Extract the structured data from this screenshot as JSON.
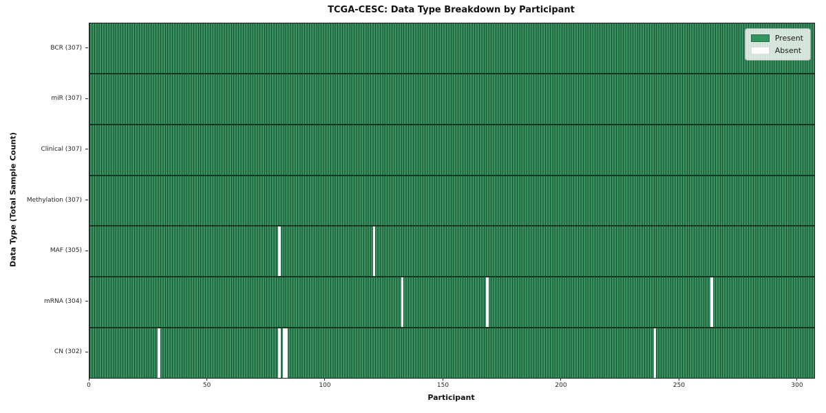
{
  "figure": {
    "title": "TCGA-CESC: Data Type Breakdown by Participant",
    "xlabel": "Participant",
    "ylabel": "Data Type (Total Sample Count)"
  },
  "legend": {
    "items": [
      {
        "label": "Present",
        "color": "#35935f"
      },
      {
        "label": "Absent",
        "color": "#ffffff"
      }
    ]
  },
  "chart_data": {
    "type": "heatmap",
    "title": "TCGA-CESC: Data Type Breakdown by Participant",
    "xlabel": "Participant",
    "ylabel": "Data Type (Total Sample Count)",
    "legend": [
      "Present",
      "Absent"
    ],
    "legend_position": "upper right",
    "n_participants": 307,
    "xlim": [
      0,
      307
    ],
    "x_ticks": [
      0,
      50,
      100,
      150,
      200,
      250,
      300
    ],
    "colors": {
      "present": "#35935f",
      "absent": "#ffffff",
      "bar_edge": "#20492f"
    },
    "rows": [
      {
        "data_type": "BCR",
        "label": "BCR (307)",
        "present_count": 307,
        "absent_participants": []
      },
      {
        "data_type": "miR",
        "label": "miR (307)",
        "present_count": 307,
        "absent_participants": []
      },
      {
        "data_type": "Clinical",
        "label": "Clinical (307)",
        "present_count": 307,
        "absent_participants": []
      },
      {
        "data_type": "Methylation",
        "label": "Methylation (307)",
        "present_count": 307,
        "absent_participants": []
      },
      {
        "data_type": "MAF",
        "label": "MAF (305)",
        "present_count": 305,
        "absent_participants": [
          80,
          120
        ]
      },
      {
        "data_type": "mRNA",
        "label": "mRNA (304)",
        "present_count": 304,
        "absent_participants": [
          132,
          168,
          263
        ]
      },
      {
        "data_type": "CN",
        "label": "CN (302)",
        "present_count": 302,
        "absent_participants": [
          29,
          80,
          82,
          83,
          239
        ]
      }
    ]
  }
}
